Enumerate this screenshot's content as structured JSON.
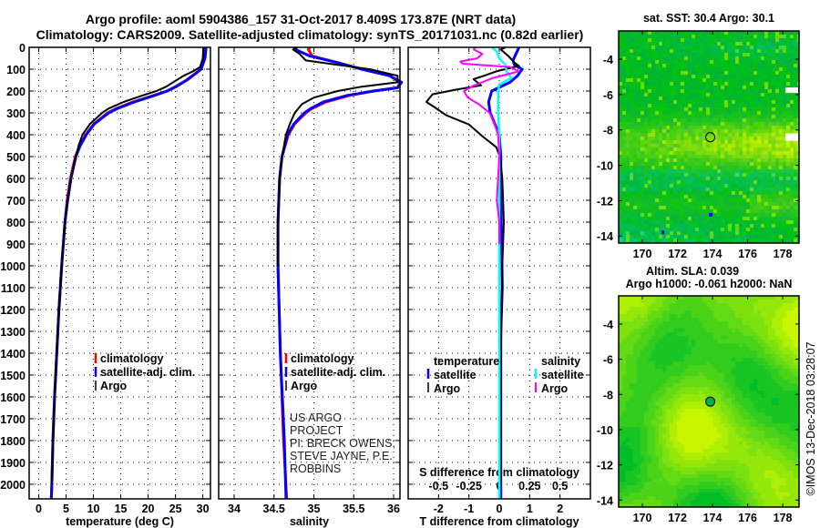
{
  "title": {
    "line1": "Argo profile: aoml 5904386_157 31-Oct-2017 8.409S 173.87E (NRT data)",
    "line2": "Climatology: CARS2009. Satellite-adjusted climatology: synTS_20171031.nc (0.82d earlier)"
  },
  "depth_axis": {
    "ticks": [
      0,
      100,
      200,
      300,
      400,
      500,
      600,
      700,
      800,
      900,
      1000,
      1100,
      1200,
      1300,
      1400,
      1500,
      1600,
      1700,
      1800,
      1900,
      2000
    ],
    "ylim": [
      0,
      2067
    ]
  },
  "credits": {
    "line1": "US ARGO PROJECT",
    "line2": "PI: BRECK OWENS, STEVE JAYNE, P.E. ROBBINS",
    "imos": "©IMOS 13-Dec-2018 03:28:07"
  },
  "legends": {
    "profile": [
      "climatology",
      "satellite-adj. clim.",
      "Argo"
    ],
    "diff": {
      "temperature_header": "temperature",
      "salinity_header": "salinity",
      "satellite": "satellite",
      "argo": "Argo"
    }
  },
  "colors": {
    "climatology": "#ff0000",
    "satellite": "#0000ff",
    "argo": "#000000",
    "sal_satellite": "#00ffff",
    "sal_argo": "#ff00ff"
  },
  "chart_data": [
    {
      "type": "line",
      "id": "temperature",
      "xlabel": "temperature (deg C)",
      "ylabel": "depth",
      "xlim": [
        -1.75,
        31.4
      ],
      "xticks": [
        0,
        5,
        10,
        15,
        20,
        25,
        30
      ],
      "grid": true,
      "series": [
        {
          "name": "climatology",
          "color": "#ff0000",
          "depth": [
            0,
            50,
            100,
            120,
            150,
            180,
            200,
            220,
            250,
            280,
            300,
            350,
            400,
            450,
            500,
            600,
            700,
            800,
            900,
            1000,
            1200,
            1400,
            1600,
            1800,
            2000,
            2067
          ],
          "x": [
            30.3,
            30.2,
            29.6,
            28.6,
            27.0,
            25.0,
            23.4,
            21.0,
            17.2,
            14.2,
            12.6,
            10.1,
            8.6,
            7.5,
            6.7,
            5.8,
            5.2,
            4.8,
            4.5,
            4.2,
            3.7,
            3.3,
            2.9,
            2.6,
            2.4,
            2.3
          ]
        },
        {
          "name": "satellite-adj. clim.",
          "color": "#0000ff",
          "depth": [
            0,
            50,
            100,
            120,
            150,
            180,
            200,
            220,
            250,
            280,
            300,
            350,
            400,
            450,
            500,
            600,
            700,
            800,
            900,
            1000,
            1200,
            1400,
            1600,
            1800,
            2000,
            2067
          ],
          "x": [
            30.6,
            30.4,
            29.7,
            28.7,
            27.1,
            25.1,
            23.5,
            21.2,
            17.5,
            14.4,
            12.8,
            10.2,
            8.7,
            7.6,
            6.8,
            5.9,
            5.3,
            4.8,
            4.5,
            4.2,
            3.7,
            3.3,
            2.9,
            2.6,
            2.4,
            2.3
          ]
        },
        {
          "name": "Argo",
          "color": "#000000",
          "depth": [
            0,
            50,
            90,
            110,
            130,
            150,
            180,
            200,
            220,
            250,
            280,
            300,
            350,
            400,
            450,
            500,
            600,
            700,
            800,
            900,
            1000,
            1200,
            1400,
            1600,
            1800,
            2000
          ],
          "x": [
            30.1,
            30.0,
            29.5,
            28.2,
            26.5,
            25.2,
            23.3,
            21.5,
            19.0,
            15.5,
            12.8,
            11.6,
            9.4,
            8.0,
            7.3,
            6.8,
            5.9,
            5.3,
            4.8,
            4.5,
            4.2,
            3.7,
            3.3,
            2.9,
            2.6,
            2.4
          ]
        }
      ]
    },
    {
      "type": "line",
      "id": "salinity",
      "xlabel": "salinity",
      "ylabel": "depth",
      "xlim": [
        33.806,
        36.08
      ],
      "xticks": [
        34,
        34.5,
        35,
        35.5,
        36
      ],
      "grid": true,
      "series": [
        {
          "name": "climatology",
          "color": "#ff0000",
          "depth": [
            0,
            10,
            40,
            70,
            100,
            130,
            160,
            185,
            200,
            220,
            250,
            280,
            300,
            350,
            400,
            500,
            600,
            800,
            1000,
            1400,
            1800,
            2067
          ],
          "x": [
            34.95,
            34.93,
            34.98,
            35.3,
            35.6,
            35.95,
            36.08,
            36.05,
            35.75,
            35.45,
            35.15,
            34.98,
            34.9,
            34.76,
            34.68,
            34.6,
            34.57,
            34.55,
            34.55,
            34.58,
            34.62,
            34.66
          ]
        },
        {
          "name": "satellite-adj. clim.",
          "color": "#0000ff",
          "depth": [
            0,
            10,
            40,
            70,
            100,
            130,
            160,
            185,
            200,
            220,
            250,
            280,
            300,
            350,
            400,
            500,
            600,
            800,
            1000,
            1400,
            1800,
            2067
          ],
          "x": [
            34.78,
            34.77,
            34.95,
            35.3,
            35.6,
            35.95,
            36.1,
            36.05,
            35.75,
            35.42,
            35.12,
            34.96,
            34.88,
            34.75,
            34.67,
            34.6,
            34.57,
            34.55,
            34.55,
            34.58,
            34.63,
            34.65
          ]
        },
        {
          "name": "Argo",
          "color": "#000000",
          "depth": [
            0,
            10,
            30,
            60,
            80,
            100,
            130,
            160,
            180,
            200,
            230,
            260,
            300,
            350,
            400,
            500,
            600,
            800,
            1000
          ],
          "x": [
            34.78,
            34.74,
            34.82,
            34.9,
            35.3,
            35.7,
            36.05,
            36.05,
            35.6,
            35.3,
            35.0,
            34.85,
            34.76,
            34.7,
            34.65,
            34.6,
            34.57,
            34.55,
            34.55
          ]
        }
      ]
    },
    {
      "type": "line",
      "id": "difference",
      "xlabel": "T difference from climatology",
      "ylabel": "depth",
      "xlim": [
        -3,
        3
      ],
      "xticks": [
        -2,
        -1,
        0,
        1,
        2
      ],
      "s_title": "S difference from climatology",
      "s_xlim": [
        -0.75,
        0.75
      ],
      "s_xticks": [
        -0.5,
        -0.25,
        0,
        0.25,
        0.5
      ],
      "s_tick_labels": [
        "-0.5",
        "-0.25",
        "0",
        "0.25",
        "0.5"
      ],
      "grid": true,
      "series": [
        {
          "name": "temperature satellite",
          "axis": "T",
          "color": "#0000ff",
          "depth": [
            0,
            30,
            60,
            80,
            100,
            130,
            160,
            200,
            250,
            300,
            350,
            400,
            500,
            700,
            900,
            1100,
            1300,
            1500,
            1700,
            1900,
            2067
          ],
          "x": [
            0.65,
            0.55,
            0.45,
            0.5,
            0.75,
            0.6,
            0.35,
            -0.25,
            -0.35,
            -0.3,
            -0.15,
            0.0,
            0.05,
            0.05,
            0.08,
            0.1,
            0.05,
            0.05,
            0.05,
            0.05,
            0.05
          ]
        },
        {
          "name": "temperature Argo",
          "axis": "T",
          "color": "#000000",
          "depth": [
            0,
            10,
            40,
            70,
            85,
            110,
            130,
            146,
            174,
            194,
            215,
            250,
            277,
            311,
            353,
            408,
            457,
            506,
            600,
            800,
            1000,
            1200,
            1400,
            1600,
            1800,
            2000
          ],
          "x": [
            0.2,
            0.05,
            0.3,
            0.5,
            0.65,
            -0.1,
            -0.5,
            -0.85,
            -0.6,
            -1.45,
            -2.2,
            -2.4,
            -2.1,
            -1.75,
            -1.0,
            -0.55,
            -0.1,
            0.03,
            0.1,
            0.15,
            0.1,
            0.08,
            0.05,
            0.05,
            0.05,
            0.05
          ]
        },
        {
          "name": "salinity satellite",
          "axis": "S",
          "color": "#00ffff",
          "depth": [
            0,
            20,
            50,
            80,
            110,
            140,
            170,
            200,
            300,
            400,
            600,
            1000,
            1400,
            1800,
            2067
          ],
          "x": [
            -0.06,
            -0.02,
            0.0,
            0.05,
            0.06,
            0.1,
            0.0,
            -0.01,
            -0.01,
            0.0,
            0.0,
            0.0,
            0.0,
            0.0,
            0.0
          ]
        },
        {
          "name": "salinity Argo",
          "axis": "S",
          "color": "#ff00ff",
          "depth": [
            0,
            10,
            30,
            50,
            65,
            75,
            90,
            110,
            140,
            175,
            200,
            230,
            260,
            300,
            350,
            400,
            500,
            700,
            800,
            900
          ],
          "x": [
            -0.2,
            -0.21,
            -0.14,
            -0.18,
            -0.32,
            -0.3,
            0.09,
            0.16,
            -0.05,
            -0.21,
            -0.29,
            -0.26,
            -0.17,
            -0.08,
            -0.04,
            -0.01,
            0.0,
            -0.02,
            0.0,
            0.0
          ]
        }
      ]
    },
    {
      "type": "heatmap",
      "id": "sst_map",
      "title": "sat. SST: 30.4 Argo: 30.1",
      "xlim": [
        168.65,
        178.93
      ],
      "ylim": [
        -14.4,
        -2.4
      ],
      "xticks": [
        170,
        172,
        174,
        176,
        178
      ],
      "yticks": [
        -4,
        -6,
        -8,
        -10,
        -12,
        -14
      ],
      "marker": {
        "lon": 173.87,
        "lat": -8.409
      }
    },
    {
      "type": "heatmap",
      "id": "sla_map",
      "title": "Altim. SLA: 0.039",
      "subtitle": "Argo h1000: -0.061 h2000: NaN",
      "xlim": [
        168.65,
        178.93
      ],
      "ylim": [
        -14.4,
        -2.4
      ],
      "xticks": [
        170,
        172,
        174,
        176,
        178
      ],
      "yticks": [
        -4,
        -6,
        -8,
        -10,
        -12,
        -14
      ],
      "marker": {
        "lon": 173.87,
        "lat": -8.409
      }
    }
  ]
}
